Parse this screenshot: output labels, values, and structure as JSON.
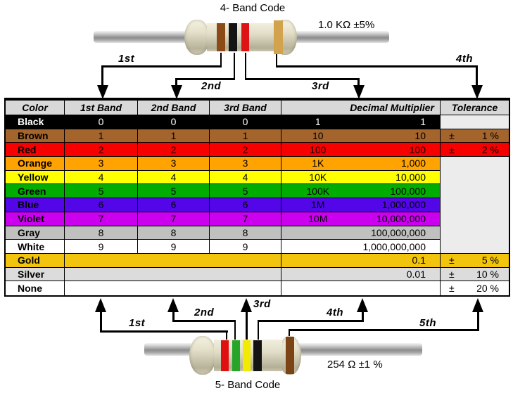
{
  "top_resistor": {
    "title": "4- Band Code",
    "value_label": "1.0 KΩ  ±5%",
    "pointer_labels": [
      "1st",
      "2nd",
      "3rd",
      "4th"
    ],
    "bands": [
      {
        "name": "brown",
        "color": "#8B4A16"
      },
      {
        "name": "black",
        "color": "#141414"
      },
      {
        "name": "red",
        "color": "#DE1414"
      },
      {
        "name": "gold",
        "color": "#D2A24C"
      }
    ]
  },
  "bottom_resistor": {
    "title": "5- Band Code",
    "value_label": "254 Ω  ±1 %",
    "pointer_labels": [
      "1st",
      "2nd",
      "3rd",
      "4th",
      "5th"
    ],
    "bands": [
      {
        "name": "red",
        "color": "#E01010"
      },
      {
        "name": "green",
        "color": "#28A428"
      },
      {
        "name": "yellow",
        "color": "#F2EA00"
      },
      {
        "name": "black",
        "color": "#141414"
      },
      {
        "name": "brown",
        "color": "#7C4414"
      }
    ]
  },
  "table": {
    "headers": [
      "Color",
      "1st Band",
      "2nd Band",
      "3rd Band",
      "Decimal Multiplier",
      "Tolerance"
    ],
    "plus_minus": "±",
    "header_bg": "#D8D8D8",
    "blank_bg": "#ECECEC",
    "rows": [
      {
        "color": "Black",
        "bg": "#000000",
        "fg": "#FFFFFF",
        "b1": "0",
        "b2": "0",
        "b3": "0",
        "mult_prefix": "1",
        "mult_value": "1",
        "tolerance": null
      },
      {
        "color": "Brown",
        "bg": "#A3652C",
        "fg": "#000000",
        "b1": "1",
        "b2": "1",
        "b3": "1",
        "mult_prefix": "10",
        "mult_value": "10",
        "tolerance": "1 %"
      },
      {
        "color": "Red",
        "bg": "#F60000",
        "fg": "#000000",
        "b1": "2",
        "b2": "2",
        "b3": "2",
        "mult_prefix": "100",
        "mult_value": "100",
        "tolerance": "2 %"
      },
      {
        "color": "Orange",
        "bg": "#FFA300",
        "fg": "#000000",
        "b1": "3",
        "b2": "3",
        "b3": "3",
        "mult_prefix": "1K",
        "mult_value": "1,000",
        "tolerance": null
      },
      {
        "color": "Yellow",
        "bg": "#FFFF00",
        "fg": "#000000",
        "b1": "4",
        "b2": "4",
        "b3": "4",
        "mult_prefix": "10K",
        "mult_value": "10,000",
        "tolerance": null
      },
      {
        "color": "Green",
        "bg": "#00AD00",
        "fg": "#000000",
        "b1": "5",
        "b2": "5",
        "b3": "5",
        "mult_prefix": "100K",
        "mult_value": "100,000",
        "tolerance": null
      },
      {
        "color": "Blue",
        "bg": "#5306E8",
        "fg": "#000000",
        "b1": "6",
        "b2": "6",
        "b3": "6",
        "mult_prefix": "1M",
        "mult_value": "1,000,000",
        "tolerance": null
      },
      {
        "color": "Violet",
        "bg": "#CB00EF",
        "fg": "#000000",
        "b1": "7",
        "b2": "7",
        "b3": "7",
        "mult_prefix": "10M",
        "mult_value": "10,000,000",
        "tolerance": null
      },
      {
        "color": "Gray",
        "bg": "#C0C0C0",
        "fg": "#000000",
        "b1": "8",
        "b2": "8",
        "b3": "8",
        "mult_prefix": "",
        "mult_value": "100,000,000",
        "tolerance": null
      },
      {
        "color": "White",
        "bg": "#FFFFFF",
        "fg": "#000000",
        "b1": "9",
        "b2": "9",
        "b3": "9",
        "mult_prefix": "",
        "mult_value": "1,000,000,000",
        "tolerance": null
      },
      {
        "color": "Gold",
        "bg": "#F2C40D",
        "fg": "#000000",
        "merged_bands": true,
        "mult_prefix": "",
        "mult_value": "0.1",
        "tolerance": "5 %"
      },
      {
        "color": "Silver",
        "bg": "#DCDCDC",
        "fg": "#000000",
        "merged_bands": true,
        "mult_prefix": "",
        "mult_value": "0.01",
        "tolerance": "10 %"
      },
      {
        "color": "None",
        "bg": "#FFFFFF",
        "fg": "#000000",
        "merged_bands": true,
        "mult_prefix": "",
        "mult_value": "",
        "tolerance": "20 %"
      }
    ]
  }
}
